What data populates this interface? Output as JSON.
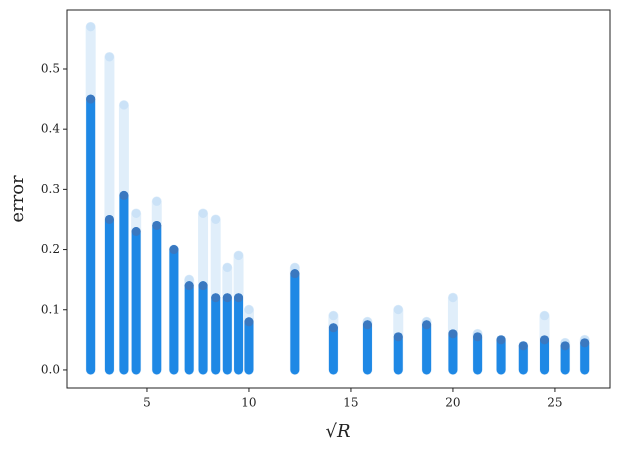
{
  "chart_data": {
    "type": "scatter",
    "xlabel": "√R",
    "ylabel": "error",
    "x": [
      2.24,
      3.16,
      3.87,
      4.47,
      5.48,
      6.32,
      7.07,
      7.75,
      8.37,
      8.94,
      9.49,
      10,
      12.25,
      14.14,
      15.81,
      17.32,
      18.71,
      20,
      21.21,
      22.36,
      23.45,
      24.49,
      25.5,
      26.46
    ],
    "series": [
      {
        "color": "#1e88e5",
        "values": [
          0.45,
          0.25,
          0.29,
          0.23,
          0.24,
          0.2,
          0.14,
          0.14,
          0.12,
          0.12,
          0.12,
          0.08,
          0.16,
          0.07,
          0.075,
          0.055,
          0.075,
          0.06,
          0.055,
          0.05,
          0.04,
          0.05,
          0.04,
          0.045
        ]
      },
      {
        "color": "#bcdaf5",
        "values": [
          0.57,
          0.52,
          0.44,
          0.26,
          0.28,
          0.2,
          0.15,
          0.26,
          0.25,
          0.17,
          0.19,
          0.1,
          0.17,
          0.09,
          0.08,
          0.1,
          0.08,
          0.12,
          0.06,
          0.05,
          0.04,
          0.09,
          0.045,
          0.05
        ]
      }
    ],
    "xlim": [
      1.08,
      27.7
    ],
    "ylim": [
      -0.03,
      0.598
    ],
    "xticks": [
      5,
      10,
      15,
      20,
      25
    ],
    "yticks": [
      {
        "value": 0,
        "label": "0.0"
      },
      0.1,
      0.2,
      0.3,
      0.4,
      0.5
    ]
  }
}
